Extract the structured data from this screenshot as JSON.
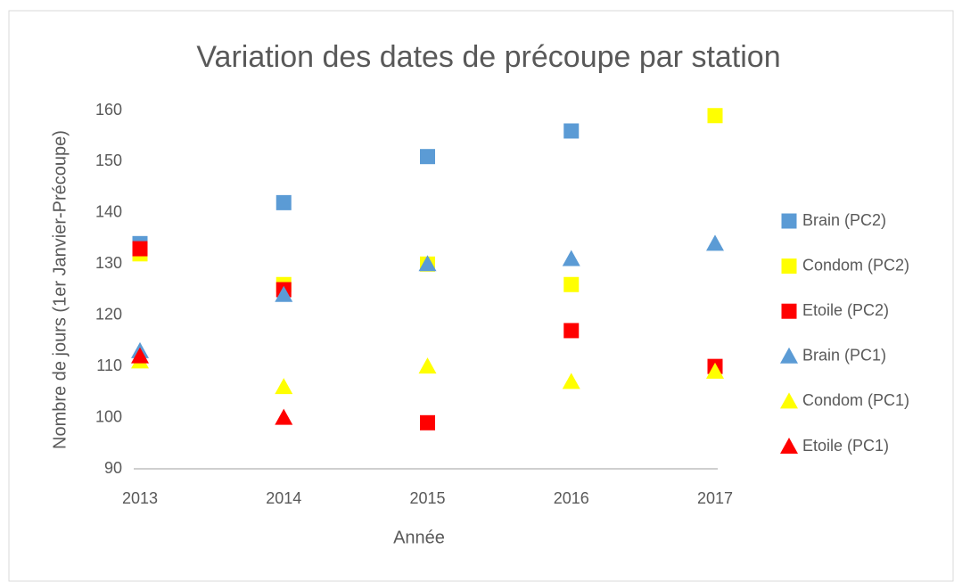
{
  "chart_data": {
    "type": "scatter",
    "title": "Variation des dates de précoupe par station",
    "x_label": "Année",
    "y_label": "Nombre de jours (1er Janvier-Précoupe)",
    "x": [
      2013,
      2014,
      2015,
      2016,
      2017
    ],
    "xlim": [
      2013,
      2017
    ],
    "xticks": [
      2013,
      2014,
      2015,
      2016,
      2017
    ],
    "ylim": [
      90,
      160
    ],
    "yticks": [
      90,
      100,
      110,
      120,
      130,
      140,
      150,
      160
    ],
    "grid": false,
    "legend": "right",
    "series": [
      {
        "name": "Brain (PC2)",
        "color": "#5b9bd5",
        "marker": "square",
        "values": [
          134,
          142,
          151,
          156,
          null
        ]
      },
      {
        "name": "Condom (PC2)",
        "color": "#ffff00",
        "marker": "square",
        "values": [
          132,
          126,
          130,
          126,
          159
        ]
      },
      {
        "name": "Etoile (PC2)",
        "color": "#ff0000",
        "marker": "square",
        "values": [
          133,
          125,
          99,
          117,
          110
        ]
      },
      {
        "name": "Brain (PC1)",
        "color": "#5b9bd5",
        "marker": "triangle",
        "values": [
          113,
          124,
          130,
          131,
          134
        ]
      },
      {
        "name": "Condom (PC1)",
        "color": "#ffff00",
        "marker": "triangle",
        "values": [
          111,
          106,
          110,
          107,
          109
        ]
      },
      {
        "name": "Etoile (PC1)",
        "color": "#ff0000",
        "marker": "triangle",
        "values": [
          112,
          100,
          null,
          null,
          null
        ]
      }
    ]
  }
}
